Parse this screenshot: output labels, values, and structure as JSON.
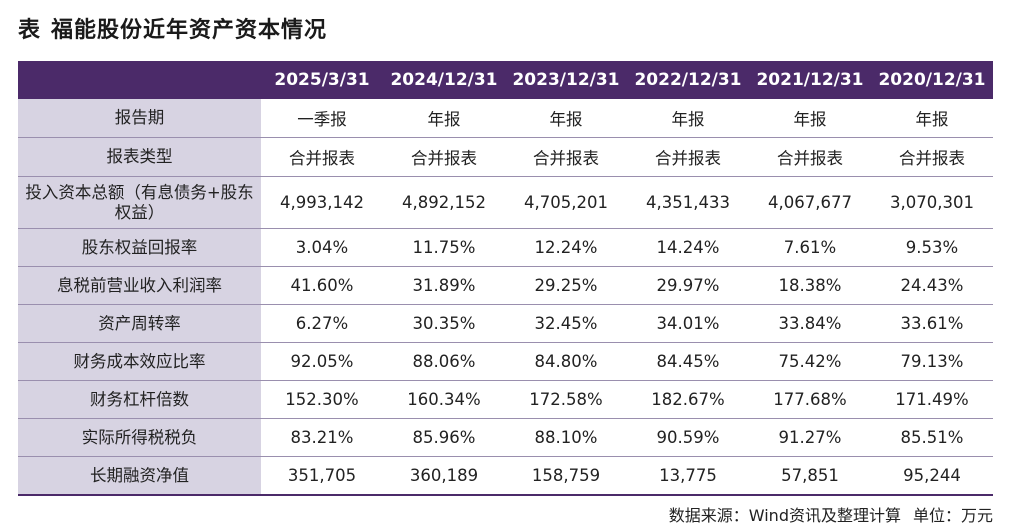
{
  "title": {
    "label": "表",
    "text": "福能股份近年资产资本情况"
  },
  "table": {
    "columns": [
      "",
      "2025/3/31",
      "2024/12/31",
      "2023/12/31",
      "2022/12/31",
      "2021/12/31",
      "2020/12/31"
    ],
    "rows": [
      {
        "label": "报告期",
        "values": [
          "一季报",
          "年报",
          "年报",
          "年报",
          "年报",
          "年报"
        ]
      },
      {
        "label": "报表类型",
        "values": [
          "合并报表",
          "合并报表",
          "合并报表",
          "合并报表",
          "合并报表",
          "合并报表"
        ]
      },
      {
        "label": "投入资本总额（有息债务+股东权益）",
        "values": [
          "4,993,142",
          "4,892,152",
          "4,705,201",
          "4,351,433",
          "4,067,677",
          "3,070,301"
        ]
      },
      {
        "label": "股东权益回报率",
        "values": [
          "3.04%",
          "11.75%",
          "12.24%",
          "14.24%",
          "7.61%",
          "9.53%"
        ]
      },
      {
        "label": "息税前营业收入利润率",
        "values": [
          "41.60%",
          "31.89%",
          "29.25%",
          "29.97%",
          "18.38%",
          "24.43%"
        ]
      },
      {
        "label": "资产周转率",
        "values": [
          "6.27%",
          "30.35%",
          "32.45%",
          "34.01%",
          "33.84%",
          "33.61%"
        ]
      },
      {
        "label": "财务成本效应比率",
        "values": [
          "92.05%",
          "88.06%",
          "84.80%",
          "84.45%",
          "75.42%",
          "79.13%"
        ]
      },
      {
        "label": "财务杠杆倍数",
        "values": [
          "152.30%",
          "160.34%",
          "172.58%",
          "182.67%",
          "177.68%",
          "171.49%"
        ]
      },
      {
        "label": "实际所得税税负",
        "values": [
          "83.21%",
          "85.96%",
          "88.10%",
          "90.59%",
          "91.27%",
          "85.51%"
        ]
      },
      {
        "label": "长期融资净值",
        "values": [
          "351,705",
          "360,189",
          "158,759",
          "13,775",
          "57,851",
          "95,244"
        ]
      }
    ]
  },
  "footnote": {
    "source": "数据来源：Wind资讯及整理计算",
    "unit": "单位：万元"
  },
  "colors": {
    "header_bg": "#4b2a69",
    "label_bg": "#d7d3e2"
  }
}
